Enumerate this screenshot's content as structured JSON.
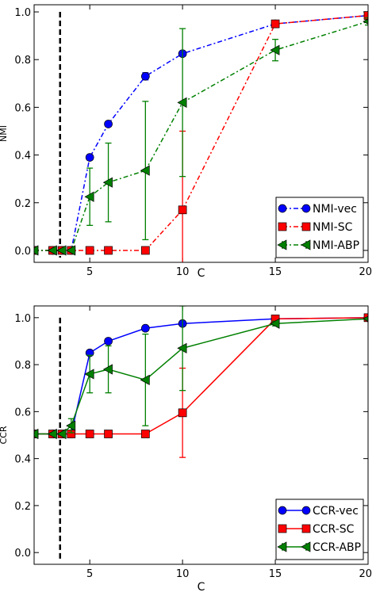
{
  "chart_data": [
    {
      "type": "line",
      "xlabel": "C",
      "ylabel": "NMI",
      "xlim": [
        2,
        20
      ],
      "ylim": [
        -0.05,
        1.03
      ],
      "xticks": [
        5,
        10,
        15,
        20
      ],
      "yticks": [
        0.0,
        0.2,
        0.4,
        0.6,
        0.8,
        1.0
      ],
      "xtick_labels": [
        "5",
        "10",
        "15",
        "20"
      ],
      "ytick_labels": [
        "0.0",
        "0.2",
        "0.4",
        "0.6",
        "0.8",
        "1.0"
      ],
      "vline_x": 3.4,
      "legend_position": "lower-right",
      "line_style": "dash-dot",
      "series": [
        {
          "name": "NMI-vec",
          "color": "#0000ff",
          "marker": "circle",
          "x": [
            2,
            3,
            3.5,
            4,
            5,
            6,
            8,
            10,
            15,
            20
          ],
          "y": [
            0.0,
            0.0,
            0.0,
            0.0,
            0.39,
            0.53,
            0.73,
            0.825,
            0.95,
            0.985
          ],
          "err": [
            0,
            0,
            0,
            0,
            0.01,
            0.01,
            0.015,
            0.01,
            0.005,
            0.005
          ]
        },
        {
          "name": "NMI-SC",
          "color": "#ff0000",
          "marker": "square",
          "x": [
            2,
            3,
            3.5,
            4,
            5,
            6,
            8,
            10,
            15,
            20
          ],
          "y": [
            0.0,
            0.0,
            0.0,
            0.0,
            0.0,
            0.0,
            0.0,
            0.17,
            0.95,
            0.985
          ],
          "err": [
            0,
            0,
            0,
            0,
            0,
            0,
            0,
            0.33,
            0.005,
            0.005
          ]
        },
        {
          "name": "NMI-ABP",
          "color": "#008000",
          "marker": "triangle-left",
          "x": [
            2,
            3,
            3.5,
            4,
            5,
            6,
            8,
            10,
            15,
            20
          ],
          "y": [
            0.0,
            0.0,
            0.0,
            0.0,
            0.225,
            0.285,
            0.335,
            0.62,
            0.84,
            0.96
          ],
          "err": [
            0,
            0,
            0,
            0,
            0.12,
            0.165,
            0.29,
            0.31,
            0.045,
            0.015
          ]
        }
      ]
    },
    {
      "type": "line",
      "xlabel": "C",
      "ylabel": "CCR",
      "xlim": [
        2,
        20
      ],
      "ylim": [
        -0.05,
        1.05
      ],
      "xticks": [
        5,
        10,
        15,
        20
      ],
      "yticks": [
        0.0,
        0.2,
        0.4,
        0.6,
        0.8,
        1.0
      ],
      "xtick_labels": [
        "5",
        "10",
        "15",
        "20"
      ],
      "ytick_labels": [
        "0.0",
        "0.2",
        "0.4",
        "0.6",
        "0.8",
        "1.0"
      ],
      "vline_x": 3.4,
      "legend_position": "lower-right",
      "line_style": "solid",
      "series": [
        {
          "name": "CCR-vec",
          "color": "#0000ff",
          "marker": "circle",
          "x": [
            2,
            3,
            3.5,
            4,
            5,
            6,
            8,
            10,
            15,
            20
          ],
          "y": [
            0.505,
            0.505,
            0.505,
            0.505,
            0.85,
            0.9,
            0.955,
            0.975,
            0.995,
            1.0
          ],
          "err": [
            0,
            0,
            0,
            0,
            0.01,
            0.01,
            0.01,
            0.01,
            0.005,
            0.005
          ]
        },
        {
          "name": "CCR-SC",
          "color": "#ff0000",
          "marker": "square",
          "x": [
            2,
            3,
            3.5,
            4,
            5,
            6,
            8,
            10,
            15,
            20
          ],
          "y": [
            0.505,
            0.505,
            0.505,
            0.505,
            0.505,
            0.505,
            0.505,
            0.595,
            0.995,
            1.0
          ],
          "err": [
            0,
            0,
            0,
            0,
            0,
            0,
            0,
            0.19,
            0.005,
            0.005
          ]
        },
        {
          "name": "CCR-ABP",
          "color": "#008000",
          "marker": "triangle-left",
          "x": [
            2,
            3,
            3.5,
            4,
            5,
            6,
            8,
            10,
            15,
            20
          ],
          "y": [
            0.505,
            0.505,
            0.505,
            0.54,
            0.76,
            0.78,
            0.735,
            0.87,
            0.975,
            0.995
          ],
          "err": [
            0,
            0,
            0,
            0.03,
            0.08,
            0.1,
            0.195,
            0.18,
            0.01,
            0.005
          ]
        }
      ]
    }
  ]
}
